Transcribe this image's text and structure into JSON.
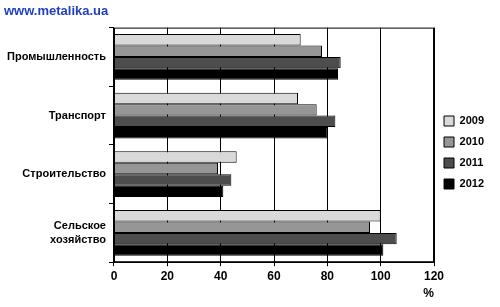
{
  "chart_data": {
    "type": "bar",
    "title": "www.metalika.ua",
    "orientation": "horizontal",
    "categories": [
      "Промышленность",
      "Транспорт",
      "Строительство",
      "Сельское хозяйство"
    ],
    "series": [
      {
        "name": "2009",
        "color": "#d9d9d9",
        "values": [
          70,
          69,
          46,
          100
        ]
      },
      {
        "name": "2010",
        "color": "#969696",
        "values": [
          78,
          76,
          39,
          96
        ]
      },
      {
        "name": "2011",
        "color": "#4d4d4d",
        "values": [
          85,
          83,
          44,
          106
        ]
      },
      {
        "name": "2012",
        "color": "#000000",
        "values": [
          84,
          80,
          41,
          101
        ]
      }
    ],
    "xlim": [
      0,
      120
    ],
    "xticks": [
      0,
      20,
      40,
      60,
      80,
      100,
      120
    ],
    "x_label": "%",
    "grid": true,
    "legend": "right"
  }
}
